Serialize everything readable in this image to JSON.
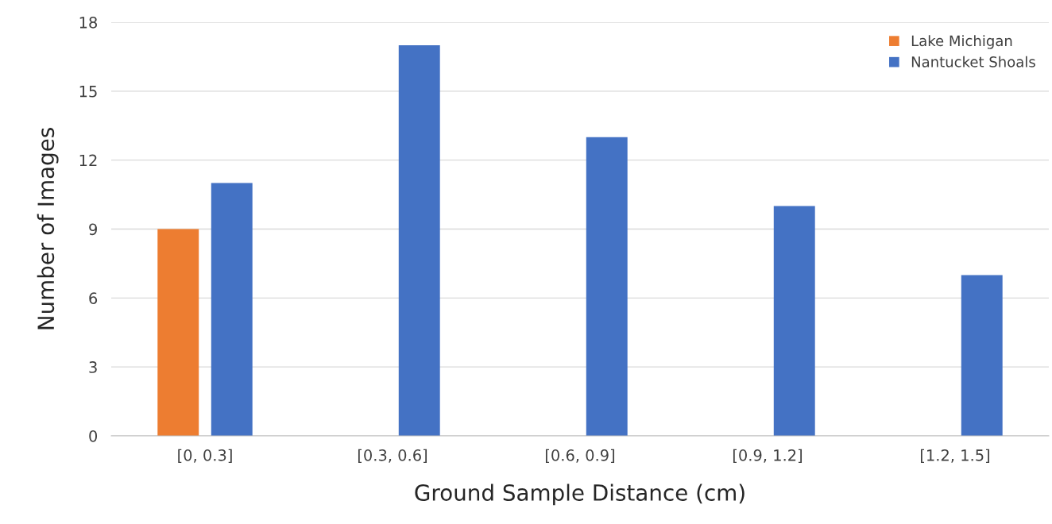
{
  "chart_data": {
    "type": "bar",
    "xlabel": "Ground Sample Distance (cm)",
    "ylabel": "Number of Images",
    "categories": [
      "[0, 0.3]",
      "[0.3, 0.6]",
      "[0.6, 0.9]",
      "[0.9, 1.2]",
      "[1.2, 1.5]"
    ],
    "series": [
      {
        "name": "Lake Michigan",
        "color": "#ed7d31",
        "values": [
          9,
          null,
          null,
          null,
          null
        ]
      },
      {
        "name": "Nantucket Shoals",
        "color": "#4472c4",
        "values": [
          11,
          17,
          13,
          10,
          7
        ]
      }
    ],
    "ylim": [
      0,
      18
    ],
    "yticks": [
      0,
      3,
      6,
      9,
      12,
      15,
      18
    ],
    "grid": "y",
    "legend": "top right"
  }
}
